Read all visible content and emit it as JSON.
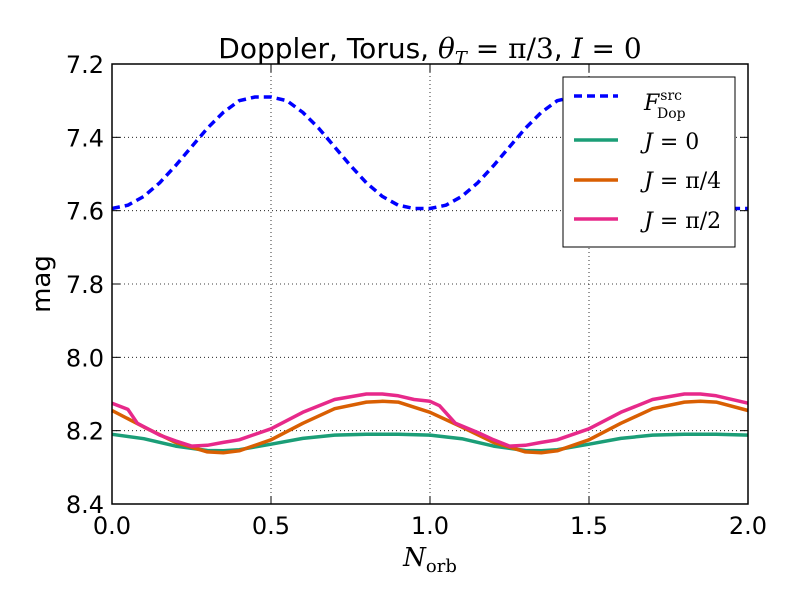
{
  "chart_data": {
    "type": "line",
    "title": {
      "prefix": "Doppler, Torus, ",
      "theta_symbol": "θ",
      "theta_sub": "T",
      "theta_value": " = π/3",
      "separator": ", ",
      "i_symbol": "I",
      "i_value": " = 0"
    },
    "xlabel": {
      "symbol": "N",
      "sub": "orb"
    },
    "ylabel": "mag",
    "xlim": [
      0.0,
      2.0
    ],
    "ylim": [
      8.4,
      7.2
    ],
    "y_inverted": true,
    "xticks": [
      "0.0",
      "0.5",
      "1.0",
      "1.5",
      "2.0"
    ],
    "yticks": [
      "7.2",
      "7.4",
      "7.6",
      "7.8",
      "8.0",
      "8.2",
      "8.4"
    ],
    "grid": true,
    "legend_position": "top-right",
    "series": [
      {
        "name": "F_Dop^src",
        "legend": {
          "symbol": "F",
          "sup": "src",
          "sub": "Dop"
        },
        "color": "#0000ff",
        "style": "dashed",
        "x": [
          0,
          0.05,
          0.1,
          0.15,
          0.2,
          0.25,
          0.3,
          0.35,
          0.4,
          0.45,
          0.5,
          0.55,
          0.6,
          0.65,
          0.7,
          0.75,
          0.8,
          0.85,
          0.9,
          0.95,
          1.0,
          1.05,
          1.1,
          1.15,
          1.2,
          1.25,
          1.3,
          1.35,
          1.4,
          1.45,
          1.5,
          1.55,
          1.6,
          1.65,
          1.7,
          1.75,
          1.8,
          1.85,
          1.9,
          1.95,
          2.0
        ],
        "y": [
          7.594,
          7.585,
          7.561,
          7.524,
          7.477,
          7.426,
          7.375,
          7.332,
          7.3,
          7.29,
          7.29,
          7.3,
          7.332,
          7.375,
          7.426,
          7.477,
          7.524,
          7.561,
          7.585,
          7.594,
          7.594,
          7.585,
          7.561,
          7.524,
          7.477,
          7.426,
          7.375,
          7.332,
          7.3,
          7.29,
          7.29,
          7.3,
          7.332,
          7.375,
          7.426,
          7.477,
          7.524,
          7.561,
          7.585,
          7.594,
          7.594
        ]
      },
      {
        "name": "J = 0",
        "legend": {
          "symbol": "J",
          "value": " = 0"
        },
        "color": "#1b9e77",
        "style": "solid",
        "x": [
          0,
          0.1,
          0.2,
          0.3,
          0.35,
          0.4,
          0.5,
          0.6,
          0.7,
          0.8,
          0.9,
          1.0,
          1.1,
          1.2,
          1.3,
          1.35,
          1.4,
          1.5,
          1.6,
          1.7,
          1.8,
          1.9,
          2.0
        ],
        "y": [
          8.21,
          8.222,
          8.242,
          8.254,
          8.255,
          8.252,
          8.237,
          8.221,
          8.212,
          8.21,
          8.21,
          8.212,
          8.222,
          8.242,
          8.254,
          8.255,
          8.252,
          8.237,
          8.221,
          8.212,
          8.21,
          8.21,
          8.212
        ]
      },
      {
        "name": "J = π/4",
        "legend": {
          "symbol": "J",
          "value": " = π/4"
        },
        "color": "#d95f02",
        "style": "solid",
        "x": [
          0,
          0.1,
          0.2,
          0.3,
          0.35,
          0.4,
          0.5,
          0.6,
          0.7,
          0.8,
          0.85,
          0.9,
          1.0,
          1.1,
          1.2,
          1.3,
          1.35,
          1.4,
          1.5,
          1.6,
          1.7,
          1.8,
          1.85,
          1.9,
          2.0
        ],
        "y": [
          8.145,
          8.19,
          8.232,
          8.258,
          8.26,
          8.255,
          8.225,
          8.18,
          8.14,
          8.122,
          8.12,
          8.122,
          8.15,
          8.19,
          8.232,
          8.258,
          8.26,
          8.255,
          8.225,
          8.18,
          8.14,
          8.122,
          8.12,
          8.122,
          8.145
        ]
      },
      {
        "name": "J = π/2",
        "legend": {
          "symbol": "J",
          "value": " = π/2"
        },
        "color": "#e7298a",
        "style": "solid",
        "x": [
          0,
          0.05,
          0.08,
          0.15,
          0.2,
          0.25,
          0.3,
          0.35,
          0.4,
          0.5,
          0.6,
          0.7,
          0.8,
          0.85,
          0.9,
          0.95,
          1.0,
          1.03,
          1.08,
          1.15,
          1.2,
          1.25,
          1.3,
          1.35,
          1.4,
          1.5,
          1.6,
          1.7,
          1.8,
          1.85,
          1.9,
          2.0
        ],
        "y": [
          8.125,
          8.142,
          8.18,
          8.212,
          8.228,
          8.242,
          8.24,
          8.232,
          8.225,
          8.195,
          8.15,
          8.115,
          8.1,
          8.1,
          8.105,
          8.115,
          8.12,
          8.132,
          8.18,
          8.205,
          8.225,
          8.242,
          8.24,
          8.232,
          8.225,
          8.195,
          8.15,
          8.115,
          8.1,
          8.1,
          8.105,
          8.125
        ]
      }
    ]
  }
}
